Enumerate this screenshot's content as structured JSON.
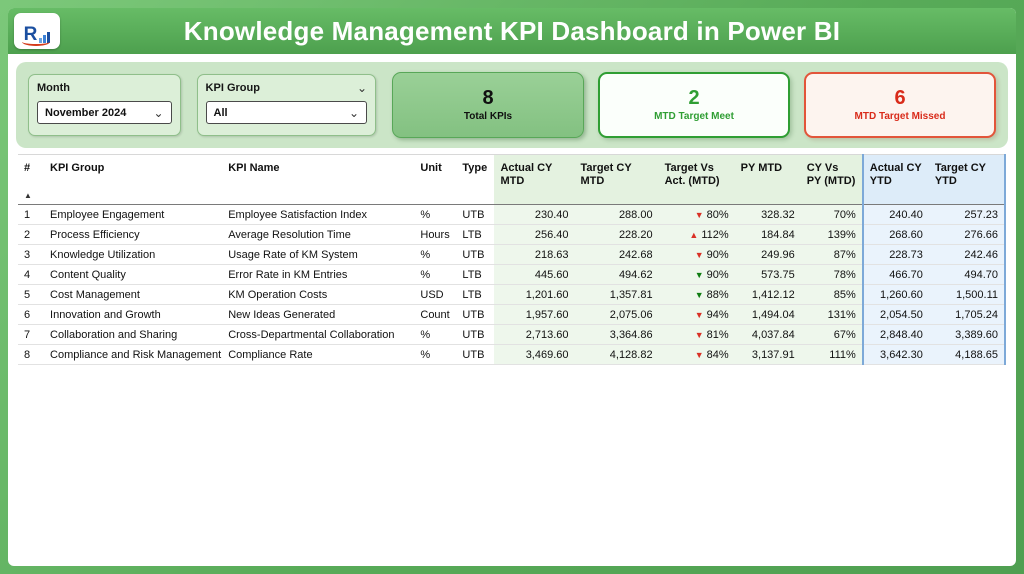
{
  "colors": {
    "frame_green": "#58ab58",
    "banner_green": "#4da04e",
    "panel_green": "#cbe5c7",
    "card_green_bg": "#8fca8d",
    "good_green": "#2f9e33",
    "bad_red": "#d92b1a",
    "tint_green": "#eef7ec",
    "tint_blue": "#eaf3fc"
  },
  "header": {
    "title": "Knowledge Management KPI Dashboard in Power BI",
    "logo_text": "R"
  },
  "filters": {
    "month": {
      "label": "Month",
      "value": "November 2024"
    },
    "kpi_group": {
      "label": "KPI Group",
      "value": "All"
    }
  },
  "cards": [
    {
      "value": "8",
      "label": "Total KPIs"
    },
    {
      "value": "2",
      "label": "MTD Target Meet"
    },
    {
      "value": "6",
      "label": "MTD Target Missed"
    }
  ],
  "table": {
    "columns": [
      "#",
      "KPI Group",
      "KPI Name",
      "Unit",
      "Type",
      "Actual CY MTD",
      "Target CY MTD",
      "Target Vs Act. (MTD)",
      "PY MTD",
      "CY Vs PY (MTD)",
      "Actual CY YTD",
      "Target CY YTD"
    ],
    "sort_indicator": "▲",
    "rows": [
      {
        "n": "1",
        "group": "Employee Engagement",
        "name": "Employee Satisfaction Index",
        "unit": "%",
        "type": "UTB",
        "actual_mtd": "230.40",
        "target_mtd": "288.00",
        "tva_arrow": "▼",
        "tva_dir": "down",
        "tva_status": "missed",
        "tva_pct": "80%",
        "py_mtd": "328.32",
        "cy_vs_py": "70%",
        "actual_ytd": "240.40",
        "target_ytd": "257.23"
      },
      {
        "n": "2",
        "group": "Process Efficiency",
        "name": "Average Resolution Time",
        "unit": "Hours",
        "type": "LTB",
        "actual_mtd": "256.40",
        "target_mtd": "228.20",
        "tva_arrow": "▲",
        "tva_dir": "up",
        "tva_status": "missed",
        "tva_pct": "112%",
        "py_mtd": "184.84",
        "cy_vs_py": "139%",
        "actual_ytd": "268.60",
        "target_ytd": "276.66"
      },
      {
        "n": "3",
        "group": "Knowledge Utilization",
        "name": "Usage Rate of KM System",
        "unit": "%",
        "type": "UTB",
        "actual_mtd": "218.63",
        "target_mtd": "242.68",
        "tva_arrow": "▼",
        "tva_dir": "down",
        "tva_status": "missed",
        "tva_pct": "90%",
        "py_mtd": "249.96",
        "cy_vs_py": "87%",
        "actual_ytd": "228.73",
        "target_ytd": "242.46"
      },
      {
        "n": "4",
        "group": "Content Quality",
        "name": "Error Rate in KM Entries",
        "unit": "%",
        "type": "LTB",
        "actual_mtd": "445.60",
        "target_mtd": "494.62",
        "tva_arrow": "▼",
        "tva_dir": "down",
        "tva_status": "met",
        "tva_pct": "90%",
        "py_mtd": "573.75",
        "cy_vs_py": "78%",
        "actual_ytd": "466.70",
        "target_ytd": "494.70"
      },
      {
        "n": "5",
        "group": "Cost Management",
        "name": "KM Operation Costs",
        "unit": "USD",
        "type": "LTB",
        "actual_mtd": "1,201.60",
        "target_mtd": "1,357.81",
        "tva_arrow": "▼",
        "tva_dir": "down",
        "tva_status": "met",
        "tva_pct": "88%",
        "py_mtd": "1,412.12",
        "cy_vs_py": "85%",
        "actual_ytd": "1,260.60",
        "target_ytd": "1,500.11"
      },
      {
        "n": "6",
        "group": "Innovation and Growth",
        "name": "New Ideas Generated",
        "unit": "Count",
        "type": "UTB",
        "actual_mtd": "1,957.60",
        "target_mtd": "2,075.06",
        "tva_arrow": "▼",
        "tva_dir": "down",
        "tva_status": "missed",
        "tva_pct": "94%",
        "py_mtd": "1,494.04",
        "cy_vs_py": "131%",
        "actual_ytd": "2,054.50",
        "target_ytd": "1,705.24"
      },
      {
        "n": "7",
        "group": "Collaboration and Sharing",
        "name": "Cross-Departmental Collaboration",
        "unit": "%",
        "type": "UTB",
        "actual_mtd": "2,713.60",
        "target_mtd": "3,364.86",
        "tva_arrow": "▼",
        "tva_dir": "down",
        "tva_status": "missed",
        "tva_pct": "81%",
        "py_mtd": "4,037.84",
        "cy_vs_py": "67%",
        "actual_ytd": "2,848.40",
        "target_ytd": "3,389.60"
      },
      {
        "n": "8",
        "group": "Compliance and Risk Management",
        "name": "Compliance Rate",
        "unit": "%",
        "type": "UTB",
        "actual_mtd": "3,469.60",
        "target_mtd": "4,128.82",
        "tva_arrow": "▼",
        "tva_dir": "down",
        "tva_status": "missed",
        "tva_pct": "84%",
        "py_mtd": "3,137.91",
        "cy_vs_py": "111%",
        "actual_ytd": "3,642.30",
        "target_ytd": "4,188.65"
      }
    ]
  },
  "ui": {
    "chevron": "⌄"
  }
}
